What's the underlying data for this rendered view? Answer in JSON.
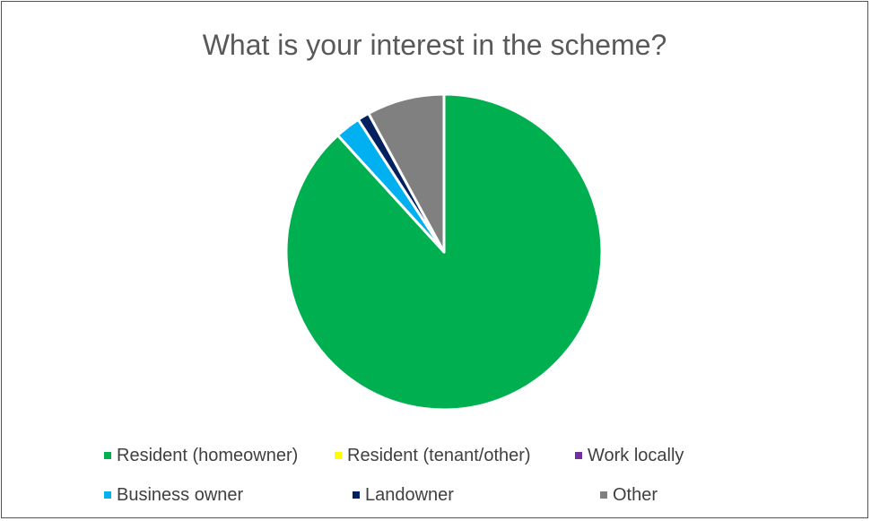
{
  "chart_data": {
    "type": "pie",
    "title": "What is your interest in the scheme?",
    "legend_position": "bottom",
    "series": [
      {
        "values": [
          {
            "label": "Resident (homeowner)",
            "value": 87.8,
            "color": "#00b050"
          },
          {
            "label": "Resident (tenant/other)",
            "value": 0,
            "color": "#ffff00"
          },
          {
            "label": "Work locally",
            "value": 0,
            "color": "#7030a0"
          },
          {
            "label": "Business owner",
            "value": 2.6,
            "color": "#00b0f0"
          },
          {
            "label": "Landowner",
            "value": 1.2,
            "color": "#002060"
          },
          {
            "label": "Other",
            "value": 7.9,
            "color": "#808080"
          }
        ]
      }
    ]
  }
}
